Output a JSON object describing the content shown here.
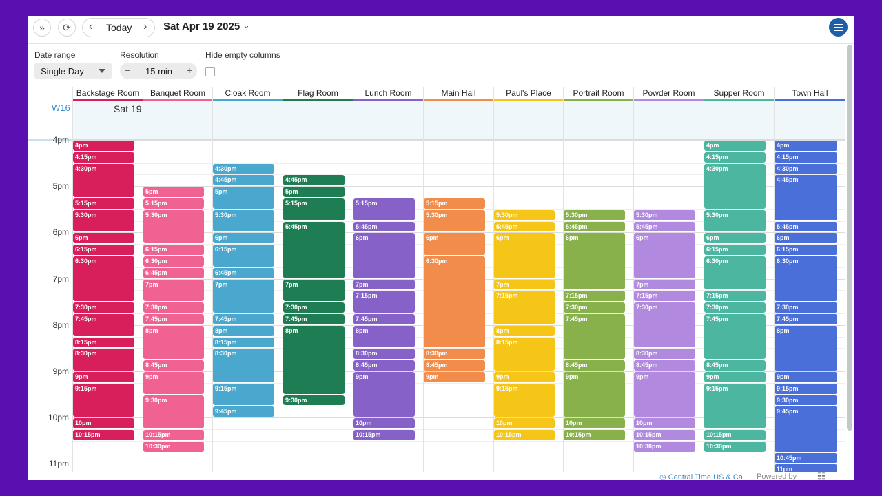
{
  "toolbar": {
    "today_label": "Today",
    "date_title": "Sat Apr 19 2025"
  },
  "controls": {
    "date_range_label": "Date range",
    "date_range_value": "Single Day",
    "resolution_label": "Resolution",
    "resolution_value": "15 min",
    "hide_empty_label": "Hide empty columns",
    "hide_empty_checked": false
  },
  "calendar": {
    "week_label": "W16",
    "day_label": "Sat 19",
    "hours": [
      "4pm",
      "5pm",
      "6pm",
      "7pm",
      "8pm",
      "9pm",
      "10pm",
      "11pm"
    ],
    "rooms": [
      {
        "name": "Backstage Room",
        "color": "#d81e5b",
        "events": [
          "4pm",
          "4:15pm",
          "4:30pm",
          "5:15pm",
          "5:30pm",
          "6pm",
          "6:15pm",
          "6:30pm",
          "7:30pm",
          "7:45pm",
          "8:15pm",
          "8:30pm",
          "9pm",
          "9:15pm",
          "10pm",
          "10:15pm"
        ]
      },
      {
        "name": "Banquet Room",
        "color": "#f06292",
        "events": [
          "5pm",
          "5:15pm",
          "5:30pm",
          "6:15pm",
          "6:30pm",
          "6:45pm",
          "7pm",
          "7:30pm",
          "7:45pm",
          "8pm",
          "8:45pm",
          "9pm",
          "9:30pm",
          "10:15pm",
          "10:30pm"
        ]
      },
      {
        "name": "Cloak Room",
        "color": "#4aa8cf",
        "events": [
          "4:30pm",
          "4:45pm",
          "5pm",
          "5:30pm",
          "6pm",
          "6:15pm",
          "6:45pm",
          "7pm",
          "7:45pm",
          "8pm",
          "8:15pm",
          "8:30pm",
          "9:15pm",
          "9:45pm"
        ]
      },
      {
        "name": "Flag Room",
        "color": "#1e7d52",
        "events": [
          "4:45pm",
          "5pm",
          "5:15pm",
          "5:45pm",
          "7pm",
          "7:30pm",
          "7:45pm",
          "8pm",
          "9:30pm"
        ]
      },
      {
        "name": "Lunch Room",
        "color": "#8561c8",
        "events": [
          "5:15pm",
          "5:45pm",
          "6pm",
          "7pm",
          "7:15pm",
          "7:45pm",
          "8pm",
          "8:30pm",
          "8:45pm",
          "9pm",
          "10pm",
          "10:15pm"
        ]
      },
      {
        "name": "Main Hall",
        "color": "#f28c4b",
        "events": [
          "5:15pm",
          "5:30pm",
          "6pm",
          "6:30pm",
          "8:30pm",
          "8:45pm",
          "9pm"
        ]
      },
      {
        "name": "Paul's Place",
        "color": "#f5c518",
        "events": [
          "5:30pm",
          "5:45pm",
          "6pm",
          "7pm",
          "7:15pm",
          "8pm",
          "8:15pm",
          "9pm",
          "9:15pm",
          "10pm",
          "10:15pm"
        ]
      },
      {
        "name": "Portrait Room",
        "color": "#88b04b",
        "events": [
          "5:30pm",
          "5:45pm",
          "6pm",
          "7:15pm",
          "7:30pm",
          "7:45pm",
          "8:45pm",
          "9pm",
          "10pm",
          "10:15pm"
        ]
      },
      {
        "name": "Powder Room",
        "color": "#b18ae0",
        "events": [
          "5:30pm",
          "5:45pm",
          "6pm",
          "7pm",
          "7:15pm",
          "7:30pm",
          "8:30pm",
          "8:45pm",
          "9pm",
          "10pm",
          "10:15pm",
          "10:30pm"
        ]
      },
      {
        "name": "Supper Room",
        "color": "#4db6a0",
        "events": [
          "4pm",
          "4:15pm",
          "4:30pm",
          "5:30pm",
          "6pm",
          "6:15pm",
          "6:30pm",
          "7:15pm",
          "7:30pm",
          "7:45pm",
          "8:45pm",
          "9pm",
          "9:15pm",
          "10:15pm",
          "10:30pm"
        ]
      },
      {
        "name": "Town Hall",
        "color": "#4a6fd8",
        "events": [
          "4pm",
          "4:15pm",
          "4:30pm",
          "4:45pm",
          "5:45pm",
          "6pm",
          "6:15pm",
          "6:30pm",
          "7:30pm",
          "7:45pm",
          "8pm",
          "9pm",
          "9:15pm",
          "9:30pm",
          "9:45pm",
          "10:45pm",
          "11pm"
        ]
      }
    ]
  },
  "footer": {
    "timezone": "Central Time US & Ca",
    "powered_by": "Powered by",
    "brand": "teamup"
  }
}
